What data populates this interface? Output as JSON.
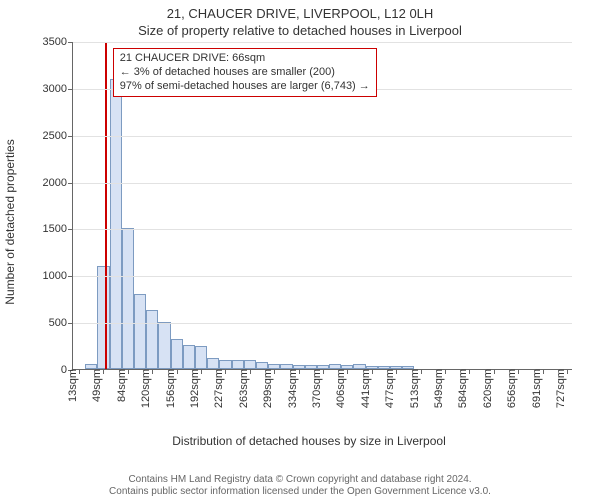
{
  "title_line1": "21, CHAUCER DRIVE, LIVERPOOL, L12 0LH",
  "title_line2": "Size of property relative to detached houses in Liverpool",
  "chart": {
    "type": "histogram",
    "ylabel": "Number of detached properties",
    "xlabel": "Distribution of detached houses by size in Liverpool",
    "ylim": [
      0,
      3500
    ],
    "ytick_step": 500,
    "yticks": [
      0,
      500,
      1000,
      1500,
      2000,
      2500,
      3000,
      3500
    ],
    "xtick_labels": [
      "13sqm",
      "49sqm",
      "84sqm",
      "120sqm",
      "156sqm",
      "192sqm",
      "227sqm",
      "263sqm",
      "299sqm",
      "334sqm",
      "370sqm",
      "406sqm",
      "441sqm",
      "477sqm",
      "513sqm",
      "549sqm",
      "584sqm",
      "620sqm",
      "656sqm",
      "691sqm",
      "727sqm"
    ],
    "bars": {
      "count": 41,
      "values": [
        0,
        50,
        1100,
        3100,
        1500,
        800,
        630,
        500,
        320,
        260,
        250,
        120,
        100,
        100,
        100,
        70,
        50,
        50,
        40,
        40,
        40,
        50,
        40,
        50,
        30,
        30,
        30,
        30,
        0,
        0,
        0,
        0,
        0,
        0,
        0,
        0,
        0,
        0,
        0,
        0,
        0
      ],
      "fill_color": "#d7e2f4",
      "border_color": "#7d9bc1",
      "bar_width_ratio": 1.0
    },
    "marker": {
      "position_bin_index": 2.6,
      "line_color": "#cc0000"
    },
    "grid_color": "#e2e2e2",
    "axis_color": "#666666",
    "background_color": "#ffffff",
    "label_fontsize": 12,
    "tick_fontsize": 11
  },
  "annotation": {
    "line1": "21 CHAUCER DRIVE: 66sqm",
    "line2": "← 3% of detached houses are smaller (200)",
    "line3": "97% of semi-detached houses are larger (6,743) →",
    "border_color": "#cc0000",
    "fontsize": 11
  },
  "footer_line1": "Contains HM Land Registry data © Crown copyright and database right 2024.",
  "footer_line2": "Contains public sector information licensed under the Open Government Licence v3.0."
}
